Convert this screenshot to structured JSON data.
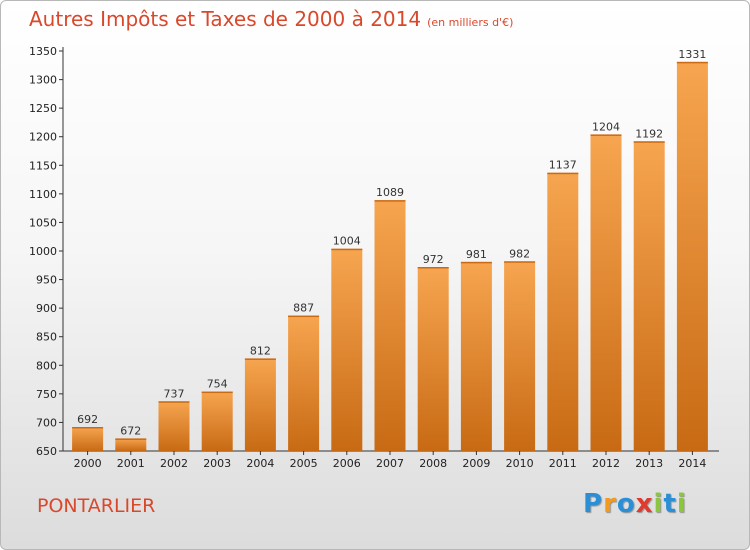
{
  "chart_data": {
    "type": "bar",
    "title": "Autres Impôts et Taxes de 2000 à 2014",
    "subtitle": "(en milliers d'€)",
    "categories": [
      "2000",
      "2001",
      "2002",
      "2003",
      "2004",
      "2005",
      "2006",
      "2007",
      "2008",
      "2009",
      "2010",
      "2011",
      "2012",
      "2013",
      "2014"
    ],
    "values": [
      692,
      672,
      737,
      754,
      812,
      887,
      1004,
      1089,
      972,
      981,
      982,
      1137,
      1204,
      1192,
      1331
    ],
    "ylim": [
      650,
      1350
    ],
    "yticks": [
      650,
      700,
      750,
      800,
      850,
      900,
      950,
      1000,
      1050,
      1100,
      1150,
      1200,
      1250,
      1300,
      1350
    ],
    "xlabel": "",
    "ylabel": "",
    "grid": false,
    "bar_color_top": "#f7a550",
    "bar_color_bottom": "#c86a14"
  },
  "footer": {
    "city": "PONTARLIER",
    "logo_letters": [
      {
        "char": "P",
        "color": "#2a8fd6"
      },
      {
        "char": "r",
        "color": "#f39a1e"
      },
      {
        "char": "o",
        "color": "#2a8fd6"
      },
      {
        "char": "x",
        "color": "#e03a2f"
      },
      {
        "char": "i",
        "color": "#8cc63f"
      },
      {
        "char": "t",
        "color": "#2a8fd6"
      },
      {
        "char": "i",
        "color": "#8cc63f"
      }
    ]
  }
}
